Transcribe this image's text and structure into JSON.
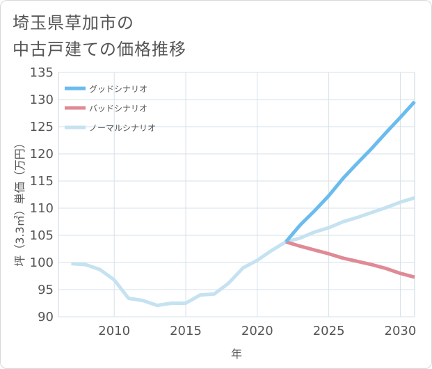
{
  "title_line1": "埼玉県草加市の",
  "title_line2": "中古戸建ての価格推移",
  "chart_data": {
    "type": "line",
    "title": "埼玉県草加市の中古戸建ての価格推移",
    "xlabel": "年",
    "ylabel": "坪（3.3㎡）単価（万円）",
    "xlim": [
      2006.1,
      2031
    ],
    "ylim": [
      90,
      135
    ],
    "xticks": [
      2010,
      2015,
      2020,
      2025,
      2030
    ],
    "yticks": [
      90,
      95,
      100,
      105,
      110,
      115,
      120,
      125,
      130,
      135
    ],
    "grid": true,
    "legend_position": "top-left",
    "series": [
      {
        "name": "グッドシナリオ",
        "color": "#6bbcee",
        "x": [
          2022,
          2023,
          2024,
          2025,
          2026,
          2027,
          2028,
          2029,
          2030,
          2031
        ],
        "y": [
          103.8,
          106.9,
          109.5,
          112.3,
          115.5,
          118.3,
          121.0,
          123.9,
          126.7,
          129.6
        ]
      },
      {
        "name": "バッドシナリオ",
        "color": "#df8a94",
        "x": [
          2022,
          2023,
          2024,
          2025,
          2026,
          2027,
          2028,
          2029,
          2030,
          2031
        ],
        "y": [
          103.8,
          103.0,
          102.3,
          101.6,
          100.8,
          100.2,
          99.6,
          98.9,
          98.0,
          97.3
        ]
      },
      {
        "name": "ノーマルシナリオ",
        "color": "#c5e2f1",
        "x": [
          2007,
          2008,
          2009,
          2010,
          2011,
          2012,
          2013,
          2014,
          2015,
          2016,
          2017,
          2018,
          2019,
          2020,
          2021,
          2022,
          2023,
          2024,
          2025,
          2026,
          2027,
          2028,
          2029,
          2030,
          2031
        ],
        "y": [
          99.8,
          99.6,
          98.7,
          96.8,
          93.4,
          93.0,
          92.1,
          92.5,
          92.5,
          94.0,
          94.2,
          96.2,
          99.0,
          100.4,
          102.2,
          103.8,
          104.5,
          105.6,
          106.4,
          107.5,
          108.3,
          109.2,
          110.1,
          111.1,
          111.9
        ]
      }
    ]
  }
}
